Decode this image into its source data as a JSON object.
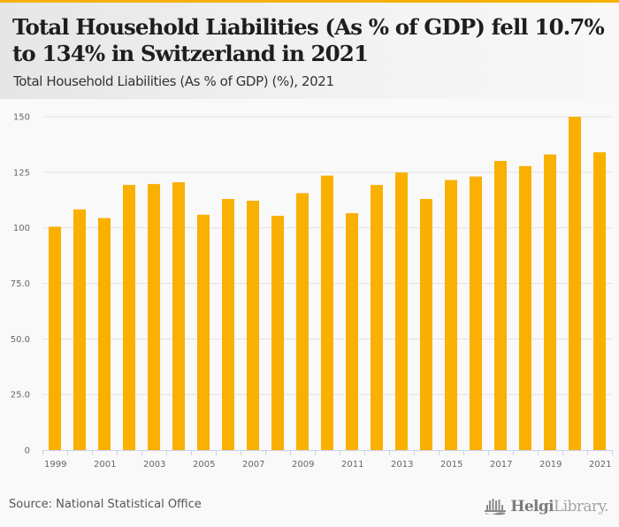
{
  "header": {
    "title": "Total Household Liabilities (As % of GDP) fell 10.7% to 134% in Switzerland in 2021",
    "subtitle": "Total Household Liabilities (As % of GDP) (%), 2021"
  },
  "footer": {
    "source": "Source: National Statistical Office",
    "brand_bold": "Helgi",
    "brand_light": "Library.",
    "brand_icon": "library-building-icon"
  },
  "colors": {
    "accent": "#f9b000",
    "bar": "#f9b000",
    "grid": "#e2e2e2",
    "axis": "#c9d3e6"
  },
  "chart_data": {
    "type": "bar",
    "title": "Total Household Liabilities (As % of GDP) (%), 2021",
    "xlabel": "",
    "ylabel": "",
    "ylim": [
      0,
      150
    ],
    "yticks": [
      0,
      25,
      50,
      75,
      100,
      125,
      150
    ],
    "ytick_labels": [
      "0",
      "25.0",
      "50.0",
      "75.0",
      "100",
      "125",
      "150"
    ],
    "grid": true,
    "legend": "none",
    "categories": [
      "1999",
      "2000",
      "2001",
      "2002",
      "2003",
      "2004",
      "2005",
      "2006",
      "2007",
      "2008",
      "2009",
      "2010",
      "2011",
      "2012",
      "2013",
      "2014",
      "2015",
      "2016",
      "2017",
      "2018",
      "2019",
      "2020",
      "2021"
    ],
    "xtick_labels": [
      "1999",
      "",
      "2001",
      "",
      "2003",
      "",
      "2005",
      "",
      "2007",
      "",
      "2009",
      "",
      "2011",
      "",
      "2013",
      "",
      "2015",
      "",
      "2017",
      "",
      "2019",
      "",
      "2021"
    ],
    "series": [
      {
        "name": "Total Household Liabilities (As % of GDP)",
        "values": [
          100.5,
          108.3,
          104.4,
          119.3,
          119.7,
          120.5,
          105.9,
          113.0,
          112.2,
          105.4,
          115.6,
          123.5,
          106.6,
          119.3,
          124.9,
          113.0,
          121.5,
          123.1,
          130.1,
          127.8,
          133.0,
          150.0,
          134.0
        ]
      }
    ]
  }
}
